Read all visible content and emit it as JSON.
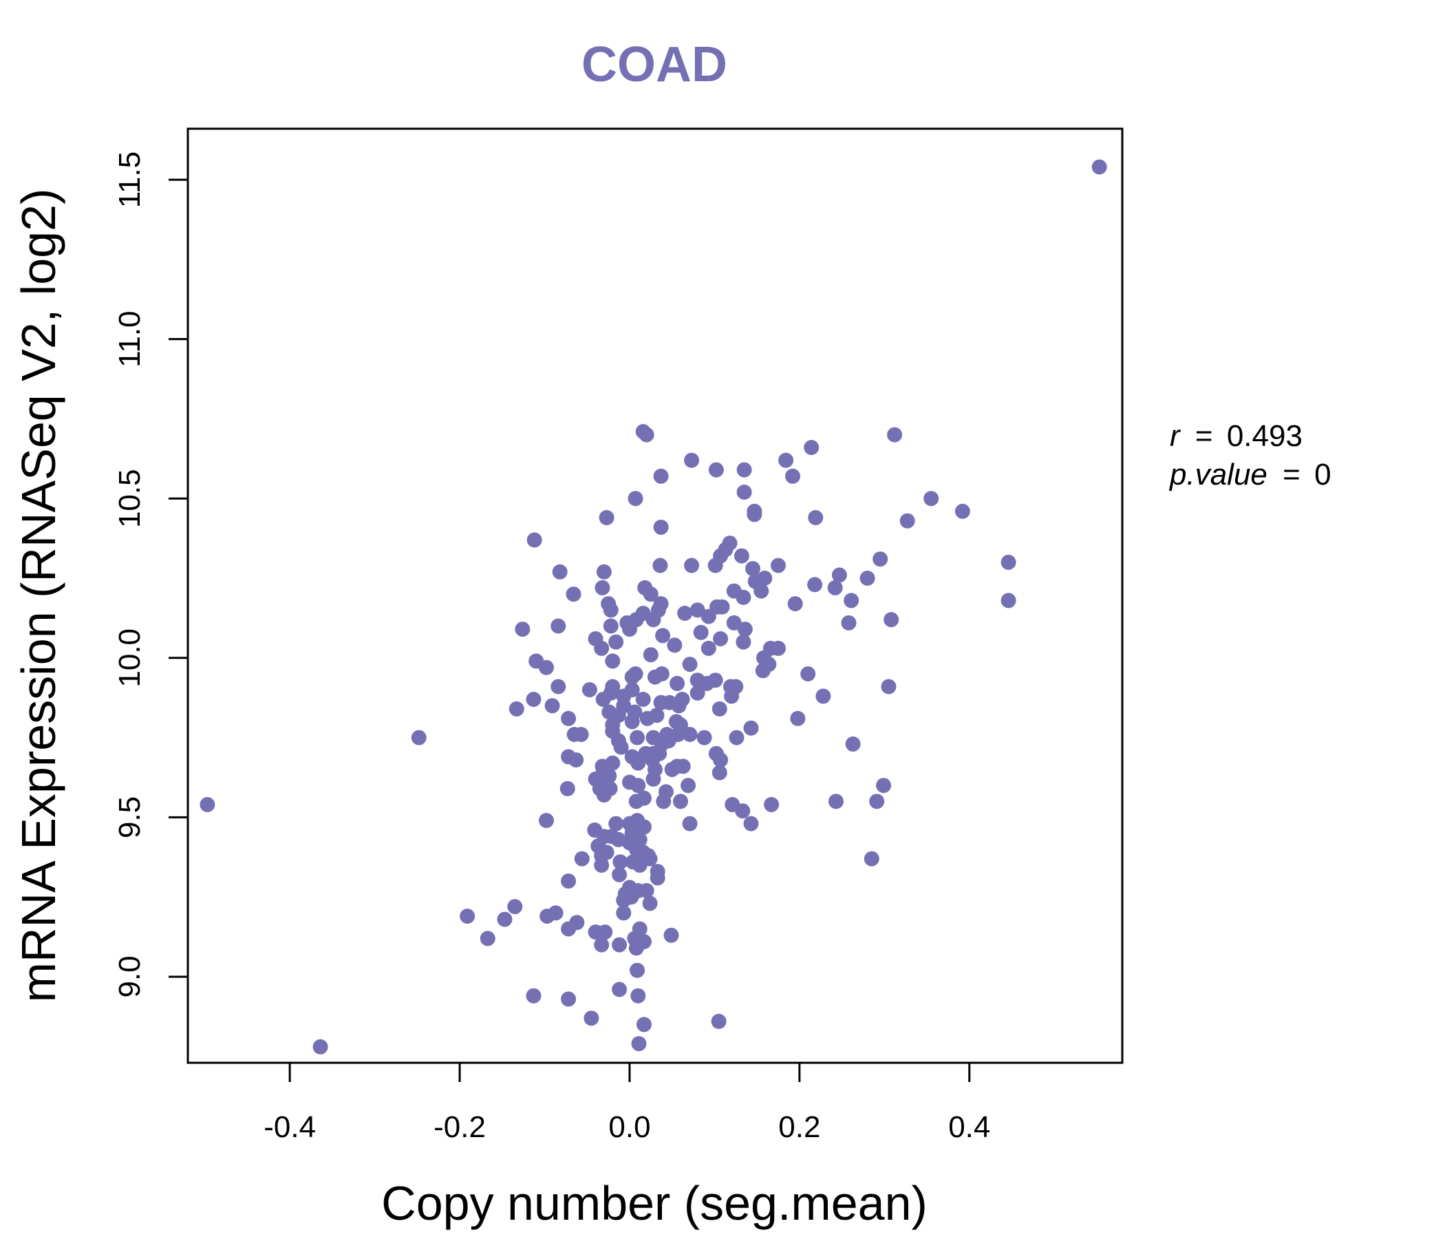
{
  "chart_data": {
    "type": "scatter",
    "title": "COAD",
    "xlabel": "Copy number (seg.mean)",
    "ylabel": "mRNA Expression (RNASeq V2, log2)",
    "xlim": [
      -0.52,
      0.58
    ],
    "ylim": [
      8.73,
      11.66
    ],
    "xticks": [
      -0.4,
      -0.2,
      0.0,
      0.2,
      0.4
    ],
    "xtick_labels": [
      "-0.4",
      "-0.2",
      "0.0",
      "0.2",
      "0.4"
    ],
    "yticks": [
      9.0,
      9.5,
      10.0,
      10.5,
      11.0,
      11.5
    ],
    "ytick_labels": [
      "9.0",
      "9.5",
      "10.0",
      "10.5",
      "11.0",
      "11.5"
    ],
    "grid": false,
    "point_color": "#7570b3",
    "title_color": "#7570b3",
    "annotation": {
      "r_label": "r",
      "r_value": "0.493",
      "p_label": "p.value",
      "p_value": "0"
    },
    "points": [
      [
        0.553,
        11.54
      ],
      [
        -0.497,
        9.54
      ],
      [
        -0.364,
        8.78
      ],
      [
        -0.248,
        9.75
      ],
      [
        0.016,
        10.71
      ],
      [
        0.02,
        10.7
      ],
      [
        0.312,
        10.7
      ],
      [
        0.214,
        10.66
      ],
      [
        0.073,
        10.62
      ],
      [
        0.184,
        10.62
      ],
      [
        0.102,
        10.59
      ],
      [
        0.135,
        10.59
      ],
      [
        0.037,
        10.57
      ],
      [
        0.192,
        10.57
      ],
      [
        0.135,
        10.52
      ],
      [
        0.007,
        10.5
      ],
      [
        0.355,
        10.5
      ],
      [
        0.392,
        10.46
      ],
      [
        0.147,
        10.46
      ],
      [
        0.147,
        10.45
      ],
      [
        0.219,
        10.44
      ],
      [
        0.327,
        10.43
      ],
      [
        -0.027,
        10.44
      ],
      [
        0.037,
        10.41
      ],
      [
        -0.112,
        10.37
      ],
      [
        0.118,
        10.36
      ],
      [
        0.113,
        10.34
      ],
      [
        0.107,
        10.32
      ],
      [
        0.132,
        10.32
      ],
      [
        0.295,
        10.31
      ],
      [
        0.175,
        10.29
      ],
      [
        0.446,
        10.3
      ],
      [
        0.101,
        10.29
      ],
      [
        0.073,
        10.29
      ],
      [
        0.036,
        10.29
      ],
      [
        -0.082,
        10.27
      ],
      [
        -0.03,
        10.27
      ],
      [
        0.145,
        10.28
      ],
      [
        0.247,
        10.26
      ],
      [
        0.28,
        10.25
      ],
      [
        0.159,
        10.25
      ],
      [
        0.148,
        10.24
      ],
      [
        0.218,
        10.23
      ],
      [
        0.018,
        10.22
      ],
      [
        0.242,
        10.22
      ],
      [
        0.155,
        10.21
      ],
      [
        0.123,
        10.21
      ],
      [
        -0.032,
        10.22
      ],
      [
        -0.066,
        10.2
      ],
      [
        0.025,
        10.2
      ],
      [
        0.134,
        10.19
      ],
      [
        0.261,
        10.18
      ],
      [
        0.446,
        10.18
      ],
      [
        -0.025,
        10.17
      ],
      [
        0.195,
        10.17
      ],
      [
        0.037,
        10.17
      ],
      [
        0.109,
        10.16
      ],
      [
        0.103,
        10.16
      ],
      [
        -0.022,
        10.15
      ],
      [
        0.08,
        10.15
      ],
      [
        0.034,
        10.15
      ],
      [
        0.016,
        10.14
      ],
      [
        0.065,
        10.14
      ],
      [
        0.093,
        10.13
      ],
      [
        0.308,
        10.12
      ],
      [
        0.028,
        10.12
      ],
      [
        0.008,
        10.12
      ],
      [
        -0.003,
        10.11
      ],
      [
        0.258,
        10.11
      ],
      [
        0.123,
        10.11
      ],
      [
        -0.022,
        10.1
      ],
      [
        -0.084,
        10.1
      ],
      [
        0.136,
        10.09
      ],
      [
        -0.126,
        10.09
      ],
      [
        0.0,
        10.09
      ],
      [
        0.084,
        10.08
      ],
      [
        0.039,
        10.07
      ],
      [
        -0.04,
        10.06
      ],
      [
        0.107,
        10.06
      ],
      [
        -0.016,
        10.05
      ],
      [
        0.134,
        10.05
      ],
      [
        0.053,
        10.04
      ],
      [
        0.166,
        10.03
      ],
      [
        0.175,
        10.03
      ],
      [
        -0.033,
        10.03
      ],
      [
        0.093,
        10.03
      ],
      [
        0.025,
        10.01
      ],
      [
        0.158,
        10.0
      ],
      [
        -0.11,
        9.99
      ],
      [
        0.071,
        9.98
      ],
      [
        -0.02,
        9.99
      ],
      [
        0.164,
        9.98
      ],
      [
        -0.098,
        9.97
      ],
      [
        0.157,
        9.96
      ],
      [
        0.007,
        9.95
      ],
      [
        0.038,
        9.95
      ],
      [
        0.21,
        9.95
      ],
      [
        0.03,
        9.94
      ],
      [
        0.003,
        9.94
      ],
      [
        0.08,
        9.93
      ],
      [
        0.101,
        9.93
      ],
      [
        0.056,
        9.92
      ],
      [
        0.091,
        9.92
      ],
      [
        -0.02,
        9.91
      ],
      [
        0.119,
        9.91
      ],
      [
        0.125,
        9.91
      ],
      [
        0.305,
        9.91
      ],
      [
        -0.084,
        9.91
      ],
      [
        -0.047,
        9.9
      ],
      [
        0.003,
        9.9
      ],
      [
        -0.022,
        9.89
      ],
      [
        0.08,
        9.89
      ],
      [
        -0.007,
        9.88
      ],
      [
        0.228,
        9.88
      ],
      [
        0.12,
        9.88
      ],
      [
        -0.113,
        9.87
      ],
      [
        -0.031,
        9.87
      ],
      [
        0.016,
        9.87
      ],
      [
        0.062,
        9.87
      ],
      [
        0.037,
        9.86
      ],
      [
        0.047,
        9.86
      ],
      [
        -0.007,
        9.85
      ],
      [
        -0.091,
        9.85
      ],
      [
        0.058,
        9.85
      ],
      [
        -0.133,
        9.84
      ],
      [
        0.106,
        9.84
      ],
      [
        -0.024,
        9.83
      ],
      [
        0.006,
        9.83
      ],
      [
        0.032,
        9.82
      ],
      [
        -0.013,
        9.82
      ],
      [
        0.021,
        9.81
      ],
      [
        -0.072,
        9.81
      ],
      [
        0.198,
        9.81
      ],
      [
        0.055,
        9.8
      ],
      [
        0.003,
        9.8
      ],
      [
        -0.02,
        9.79
      ],
      [
        0.06,
        9.79
      ],
      [
        0.143,
        9.78
      ],
      [
        -0.02,
        9.77
      ],
      [
        0.057,
        9.76
      ],
      [
        0.071,
        9.76
      ],
      [
        -0.065,
        9.76
      ],
      [
        -0.057,
        9.76
      ],
      [
        0.044,
        9.76
      ],
      [
        0.088,
        9.75
      ],
      [
        0.028,
        9.75
      ],
      [
        0.126,
        9.75
      ],
      [
        0.009,
        9.75
      ],
      [
        -0.013,
        9.74
      ],
      [
        0.046,
        9.74
      ],
      [
        0.038,
        9.73
      ],
      [
        0.263,
        9.73
      ],
      [
        -0.01,
        9.72
      ],
      [
        0.019,
        9.7
      ],
      [
        0.028,
        9.7
      ],
      [
        0.102,
        9.7
      ],
      [
        0.035,
        9.7
      ],
      [
        0.003,
        9.69
      ],
      [
        -0.072,
        9.69
      ],
      [
        0.107,
        9.68
      ],
      [
        -0.063,
        9.68
      ],
      [
        0.027,
        9.68
      ],
      [
        0.01,
        9.67
      ],
      [
        -0.02,
        9.67
      ],
      [
        0.056,
        9.66
      ],
      [
        0.063,
        9.66
      ],
      [
        -0.032,
        9.66
      ],
      [
        0.05,
        9.65
      ],
      [
        0.03,
        9.65
      ],
      [
        0.106,
        9.64
      ],
      [
        -0.033,
        9.63
      ],
      [
        -0.024,
        9.63
      ],
      [
        0.028,
        9.62
      ],
      [
        -0.04,
        9.62
      ],
      [
        0.0,
        9.61
      ],
      [
        0.299,
        9.6
      ],
      [
        0.01,
        9.6
      ],
      [
        0.069,
        9.6
      ],
      [
        -0.073,
        9.59
      ],
      [
        -0.035,
        9.59
      ],
      [
        -0.023,
        9.59
      ],
      [
        0.043,
        9.58
      ],
      [
        -0.03,
        9.57
      ],
      [
        0.017,
        9.56
      ],
      [
        0.008,
        9.55
      ],
      [
        0.243,
        9.55
      ],
      [
        0.291,
        9.55
      ],
      [
        0.06,
        9.55
      ],
      [
        0.04,
        9.55
      ],
      [
        0.121,
        9.54
      ],
      [
        0.167,
        9.54
      ],
      [
        0.133,
        9.52
      ],
      [
        -0.098,
        9.49
      ],
      [
        0.143,
        9.48
      ],
      [
        0.071,
        9.48
      ],
      [
        0.009,
        9.49
      ],
      [
        -0.016,
        9.48
      ],
      [
        0.0,
        9.48
      ],
      [
        0.017,
        9.47
      ],
      [
        -0.041,
        9.46
      ],
      [
        0.003,
        9.45
      ],
      [
        -0.03,
        9.44
      ],
      [
        -0.021,
        9.44
      ],
      [
        0.012,
        9.43
      ],
      [
        -0.013,
        9.43
      ],
      [
        0.0,
        9.42
      ],
      [
        -0.037,
        9.41
      ],
      [
        0.008,
        9.4
      ],
      [
        -0.027,
        9.39
      ],
      [
        0.016,
        9.39
      ],
      [
        -0.033,
        9.38
      ],
      [
        0.022,
        9.38
      ],
      [
        0.024,
        9.37
      ],
      [
        -0.056,
        9.37
      ],
      [
        0.285,
        9.37
      ],
      [
        -0.011,
        9.36
      ],
      [
        0.004,
        9.36
      ],
      [
        0.012,
        9.35
      ],
      [
        -0.033,
        9.35
      ],
      [
        0.033,
        9.33
      ],
      [
        -0.012,
        9.32
      ],
      [
        0.033,
        9.31
      ],
      [
        -0.072,
        9.3
      ],
      [
        0.0,
        9.28
      ],
      [
        0.01,
        9.27
      ],
      [
        0.02,
        9.27
      ],
      [
        -0.005,
        9.26
      ],
      [
        0.002,
        9.25
      ],
      [
        -0.007,
        9.24
      ],
      [
        0.024,
        9.23
      ],
      [
        -0.135,
        9.22
      ],
      [
        -0.007,
        9.2
      ],
      [
        -0.087,
        9.2
      ],
      [
        -0.097,
        9.19
      ],
      [
        -0.191,
        9.19
      ],
      [
        -0.147,
        9.18
      ],
      [
        -0.062,
        9.17
      ],
      [
        -0.072,
        9.15
      ],
      [
        0.012,
        9.15
      ],
      [
        -0.04,
        9.14
      ],
      [
        -0.029,
        9.14
      ],
      [
        0.049,
        9.13
      ],
      [
        -0.167,
        9.12
      ],
      [
        0.006,
        9.12
      ],
      [
        0.017,
        9.11
      ],
      [
        -0.033,
        9.1
      ],
      [
        -0.012,
        9.1
      ],
      [
        0.008,
        9.09
      ],
      [
        0.009,
        9.02
      ],
      [
        -0.012,
        8.96
      ],
      [
        -0.113,
        8.94
      ],
      [
        -0.072,
        8.93
      ],
      [
        0.01,
        8.94
      ],
      [
        -0.045,
        8.87
      ],
      [
        0.017,
        8.85
      ],
      [
        0.105,
        8.86
      ],
      [
        0.011,
        8.79
      ]
    ]
  }
}
